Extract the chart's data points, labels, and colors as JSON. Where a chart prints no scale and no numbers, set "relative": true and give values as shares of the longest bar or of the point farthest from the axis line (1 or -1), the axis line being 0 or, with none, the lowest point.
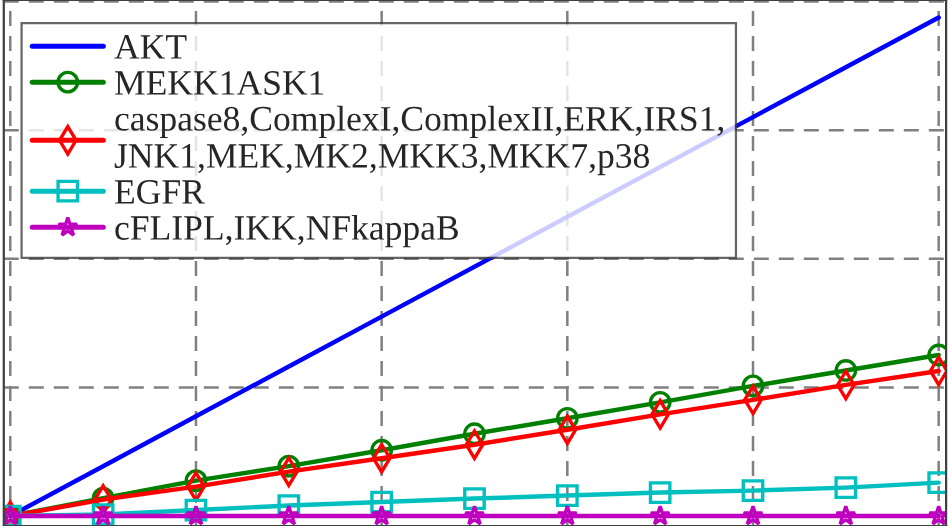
{
  "chart_data": {
    "type": "line",
    "relative": true,
    "grid": true,
    "legend": "top left",
    "categories": [
      null,
      null,
      null,
      null,
      null,
      null,
      null,
      null,
      null,
      null,
      null
    ],
    "series": [
      {
        "name": "AKT",
        "color": "#0000ff",
        "marker": "none",
        "values": [
          0,
          0.1,
          0.2,
          0.3,
          0.4,
          null,
          null,
          null,
          0.8,
          0.9,
          1.0
        ]
      },
      {
        "name": "MEKK1ASK1",
        "color": "#008000",
        "marker": "circle",
        "values": [
          0,
          0.036,
          0.071,
          0.1,
          0.132,
          0.165,
          0.196,
          0.228,
          0.261,
          0.292,
          0.323
        ]
      },
      {
        "name": "caspase8,ComplexI,ComplexII,ERK,IRS1,\nJNK1,MEK,MK2,MKK3,MKK7,p38",
        "color": "#ff0000",
        "marker": "diamond",
        "values": [
          0,
          0.033,
          0.059,
          0.089,
          0.116,
          0.143,
          0.173,
          0.204,
          0.233,
          0.263,
          0.291
        ]
      },
      {
        "name": "EGFR",
        "color": "#00bfbf",
        "marker": "square",
        "values": [
          0,
          0.003,
          0.012,
          0.021,
          0.028,
          0.035,
          0.041,
          0.047,
          0.051,
          0.057,
          0.067
        ]
      },
      {
        "name": "cFLIPL,IKK,NFkappaB",
        "color": "#bf00bf",
        "marker": "star",
        "values": [
          0,
          0,
          0,
          0,
          0,
          0,
          0,
          0,
          0,
          0,
          0
        ]
      }
    ]
  }
}
